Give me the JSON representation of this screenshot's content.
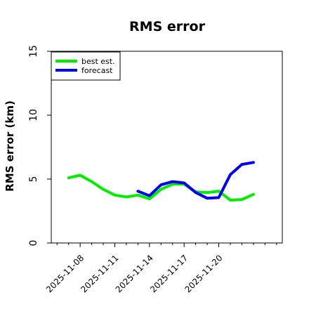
{
  "chart_data": {
    "type": "line",
    "title": "RMS error",
    "ylabel": "RMS error (km)",
    "xlabel": "",
    "ylim": [
      0,
      15
    ],
    "xlim": [
      "2025-11-05T12:00",
      "2025-11-25T12:00"
    ],
    "yticks": [
      0,
      5,
      10,
      15
    ],
    "xticks": [
      "2025-11-08",
      "2025-11-11",
      "2025-11-14",
      "2025-11-17",
      "2025-11-20"
    ],
    "grid": false,
    "legend_position": "top-left",
    "series": [
      {
        "name": "best est.",
        "color": "#00ee00",
        "x": [
          "2025-11-07",
          "2025-11-08",
          "2025-11-09",
          "2025-11-10",
          "2025-11-11",
          "2025-11-12",
          "2025-11-13",
          "2025-11-14",
          "2025-11-15",
          "2025-11-16",
          "2025-11-17",
          "2025-11-18",
          "2025-11-19",
          "2025-11-20",
          "2025-11-21",
          "2025-11-22",
          "2025-11-23"
        ],
        "values": [
          5.1,
          5.3,
          4.8,
          4.2,
          3.75,
          3.6,
          3.75,
          3.45,
          4.2,
          4.6,
          4.6,
          4.0,
          3.95,
          4.05,
          3.35,
          3.4,
          3.8
        ]
      },
      {
        "name": "forecast",
        "color": "#0000ee",
        "x": [
          "2025-11-13",
          "2025-11-14",
          "2025-11-15",
          "2025-11-16",
          "2025-11-17",
          "2025-11-18",
          "2025-11-19",
          "2025-11-20",
          "2025-11-21",
          "2025-11-22",
          "2025-11-23"
        ],
        "values": [
          4.05,
          3.7,
          4.55,
          4.8,
          4.7,
          3.95,
          3.5,
          3.55,
          5.35,
          6.15,
          6.3
        ]
      }
    ]
  }
}
